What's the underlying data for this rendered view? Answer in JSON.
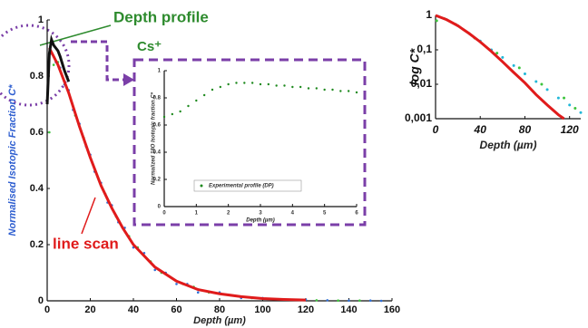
{
  "chart_data": [
    {
      "type": "scatter",
      "xlabel": "Depth (µm)",
      "ylabel": "Normalised Isotopic Fraction C*",
      "xlim": [
        0,
        160
      ],
      "ylim": [
        0,
        1
      ],
      "xticks": [
        0,
        20,
        40,
        60,
        80,
        100,
        120,
        140,
        160
      ],
      "yticks": [
        0,
        0.2,
        0.4,
        0.6,
        0.8,
        1
      ],
      "annotations": [
        {
          "text": "Depth profile",
          "color": "#2e8b2e"
        },
        {
          "text": "line scan",
          "color": "#e01b1b"
        }
      ],
      "series": [
        {
          "type": "point",
          "color": "#2f6fd6",
          "x": [
            2,
            4,
            6,
            8,
            10,
            12,
            15,
            18,
            20,
            22,
            25,
            28,
            30,
            33,
            36,
            40,
            45,
            50,
            55,
            60,
            65,
            70,
            80,
            90,
            100,
            110,
            120,
            130,
            140,
            150,
            155
          ],
          "values": [
            0.88,
            0.85,
            0.83,
            0.77,
            0.75,
            0.68,
            0.63,
            0.55,
            0.52,
            0.46,
            0.42,
            0.35,
            0.34,
            0.28,
            0.26,
            0.19,
            0.17,
            0.11,
            0.1,
            0.06,
            0.06,
            0.03,
            0.03,
            0.01,
            0.01,
            0.005,
            0.004,
            0.002,
            0.001,
            0.001,
            0
          ]
        },
        {
          "type": "point",
          "color": "#3cc43c",
          "x": [
            1,
            3,
            5,
            7,
            9,
            13,
            17,
            21,
            24,
            27,
            32,
            38,
            42,
            48,
            53,
            58,
            63,
            68,
            75,
            85,
            95,
            105,
            115,
            125,
            135,
            145
          ],
          "values": [
            0.6,
            0.84,
            0.85,
            0.8,
            0.76,
            0.66,
            0.58,
            0.49,
            0.43,
            0.38,
            0.3,
            0.23,
            0.19,
            0.14,
            0.1,
            0.08,
            0.06,
            0.05,
            0.03,
            0.02,
            0.01,
            0.006,
            0.004,
            0.002,
            0.001,
            0.001
          ]
        },
        {
          "type": "line",
          "color": "#e01b1b",
          "x": [
            1,
            5,
            10,
            15,
            20,
            25,
            30,
            35,
            40,
            50,
            60,
            70,
            80,
            90,
            100,
            110,
            120
          ],
          "values": [
            0.9,
            0.84,
            0.74,
            0.62,
            0.51,
            0.41,
            0.33,
            0.26,
            0.2,
            0.12,
            0.07,
            0.04,
            0.025,
            0.015,
            0.008,
            0.005,
            0.003
          ]
        },
        {
          "type": "line",
          "color": "#111111",
          "x": [
            0,
            1,
            2,
            3,
            4,
            5,
            6,
            8,
            10
          ],
          "values": [
            0.7,
            0.88,
            0.93,
            0.91,
            0.9,
            0.89,
            0.87,
            0.82,
            0.78
          ]
        }
      ]
    },
    {
      "type": "scatter",
      "title": "Cs⁺",
      "xlabel": "Depth (µm)",
      "ylabel": "Normalized 18O Isotopic fraction C*",
      "xlim": [
        0,
        6
      ],
      "ylim": [
        0,
        1
      ],
      "xticks": [
        0,
        1,
        2,
        3,
        4,
        5,
        6
      ],
      "yticks": [
        0,
        0.2,
        0.4,
        0.6,
        0.8,
        1
      ],
      "series": [
        {
          "type": "point",
          "name": "Experimental profile (DP)",
          "color": "#1f8a1f",
          "x": [
            0,
            0.25,
            0.5,
            0.75,
            1,
            1.25,
            1.5,
            1.75,
            2,
            2.25,
            2.5,
            2.75,
            3,
            3.25,
            3.5,
            3.75,
            4,
            4.25,
            4.5,
            4.75,
            5,
            5.25,
            5.5,
            5.75,
            6
          ],
          "values": [
            0.66,
            0.68,
            0.7,
            0.74,
            0.78,
            0.82,
            0.86,
            0.88,
            0.9,
            0.91,
            0.91,
            0.91,
            0.9,
            0.9,
            0.89,
            0.89,
            0.88,
            0.88,
            0.87,
            0.87,
            0.86,
            0.86,
            0.85,
            0.85,
            0.84
          ]
        }
      ]
    },
    {
      "type": "scatter",
      "log_y": true,
      "xlabel": "Depth (µm)",
      "ylabel": "log C*",
      "xlim": [
        0,
        130
      ],
      "ylim": [
        0.001,
        1
      ],
      "xticks": [
        0,
        40,
        80,
        120
      ],
      "yticks": [
        1,
        {
          "value": 0.1,
          "label": "0,1"
        },
        {
          "value": 0.01,
          "label": "0,01"
        },
        {
          "value": 0.001,
          "label": "0,001"
        }
      ],
      "series": [
        {
          "type": "point",
          "color": "#3cc43c",
          "x": [
            1,
            8,
            18,
            35,
            55,
            75,
            95,
            115,
            125
          ],
          "values": [
            0.7,
            0.8,
            0.55,
            0.22,
            0.08,
            0.03,
            0.01,
            0.004,
            0.002
          ]
        },
        {
          "type": "point",
          "color": "#22b8d8",
          "x": [
            2,
            10,
            20,
            30,
            40,
            50,
            60,
            70,
            80,
            90,
            100,
            110,
            120,
            130
          ],
          "values": [
            0.95,
            0.75,
            0.5,
            0.3,
            0.18,
            0.1,
            0.06,
            0.035,
            0.02,
            0.012,
            0.007,
            0.004,
            0.0025,
            0.0015
          ]
        },
        {
          "type": "line",
          "color": "#e01b1b",
          "x": [
            0,
            10,
            20,
            30,
            40,
            50,
            60,
            70,
            80,
            90,
            100,
            110,
            115
          ],
          "values": [
            1,
            0.75,
            0.5,
            0.3,
            0.17,
            0.09,
            0.045,
            0.022,
            0.011,
            0.005,
            0.0025,
            0.0013,
            0.001
          ]
        }
      ]
    }
  ]
}
